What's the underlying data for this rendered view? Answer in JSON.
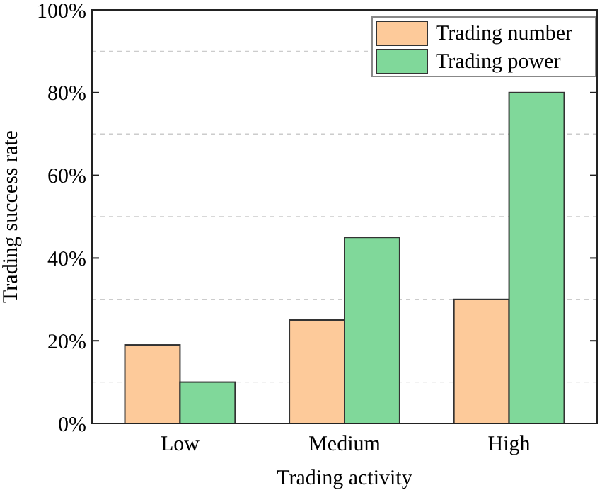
{
  "chart_data": {
    "type": "bar",
    "xlabel": "Trading activity",
    "ylabel": "Trading success rate",
    "categories": [
      "Low",
      "Medium",
      "High"
    ],
    "series": [
      {
        "name": "Trading number",
        "color": "#fdca9a",
        "values": [
          19,
          25,
          30
        ]
      },
      {
        "name": "Trading power",
        "color": "#80d89a",
        "values": [
          10,
          45,
          80
        ]
      }
    ],
    "ylim": [
      0,
      100
    ],
    "yticks": [
      {
        "value": 0,
        "label": "0%"
      },
      {
        "value": 10,
        "label": null
      },
      {
        "value": 20,
        "label": "20%"
      },
      {
        "value": 30,
        "label": null
      },
      {
        "value": 40,
        "label": "40%"
      },
      {
        "value": 50,
        "label": null
      },
      {
        "value": 60,
        "label": "60%"
      },
      {
        "value": 70,
        "label": null
      },
      {
        "value": 80,
        "label": "80%"
      },
      {
        "value": 90,
        "label": null
      },
      {
        "value": 100,
        "label": "100%"
      }
    ],
    "grid": "y",
    "legend": "top right"
  }
}
